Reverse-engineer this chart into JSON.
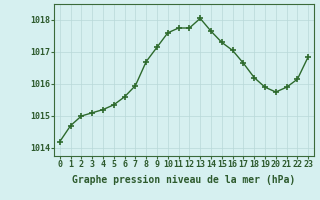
{
  "x": [
    0,
    1,
    2,
    3,
    4,
    5,
    6,
    7,
    8,
    9,
    10,
    11,
    12,
    13,
    14,
    15,
    16,
    17,
    18,
    19,
    20,
    21,
    22,
    23
  ],
  "y": [
    1014.2,
    1014.7,
    1015.0,
    1015.1,
    1015.2,
    1015.35,
    1015.6,
    1015.95,
    1016.7,
    1017.15,
    1017.6,
    1017.75,
    1017.75,
    1018.05,
    1017.65,
    1017.3,
    1017.05,
    1016.65,
    1016.2,
    1015.9,
    1015.75,
    1015.9,
    1016.15,
    1016.85
  ],
  "line_color": "#2d6a2d",
  "marker_color": "#2d6a2d",
  "bg_color": "#d6f0f0",
  "grid_color": "#b8d8d8",
  "axis_label_color": "#2d5a2d",
  "tick_label_color": "#2d5a2d",
  "xlabel": "Graphe pression niveau de la mer (hPa)",
  "ylim": [
    1013.75,
    1018.5
  ],
  "yticks": [
    1014,
    1015,
    1016,
    1017,
    1018
  ],
  "xticks": [
    0,
    1,
    2,
    3,
    4,
    5,
    6,
    7,
    8,
    9,
    10,
    11,
    12,
    13,
    14,
    15,
    16,
    17,
    18,
    19,
    20,
    21,
    22,
    23
  ],
  "line_width": 1.0,
  "marker_size": 4.0,
  "xlabel_fontsize": 7.0,
  "tick_fontsize": 6.0
}
